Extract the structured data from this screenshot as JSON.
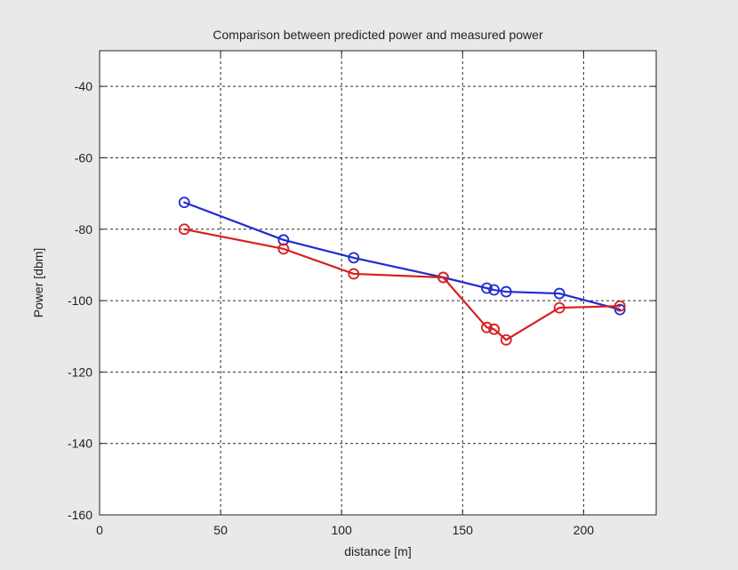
{
  "chart_data": {
    "type": "line",
    "title": "Comparison between predicted power and measured power",
    "xlabel": "distance [m]",
    "ylabel": "Power [dbm]",
    "xlim": [
      0,
      230
    ],
    "ylim": [
      -160,
      -30
    ],
    "xticks": [
      0,
      50,
      100,
      150,
      200
    ],
    "yticks": [
      -160,
      -140,
      -120,
      -100,
      -80,
      -60,
      -40
    ],
    "grid": true,
    "series": [
      {
        "color": "#1f2bd0",
        "marker": "circle",
        "x": [
          35,
          76,
          105,
          142,
          160,
          163,
          168,
          190,
          215
        ],
        "y": [
          -72.5,
          -83,
          -88,
          -93.5,
          -96.5,
          -97,
          -97.5,
          -98,
          -102.5
        ]
      },
      {
        "color": "#d91f1f",
        "marker": "circle",
        "x": [
          35,
          76,
          105,
          142,
          160,
          163,
          168,
          190,
          215
        ],
        "y": [
          -80,
          -85.5,
          -92.5,
          -93.5,
          -107.5,
          -108,
          -111,
          -102,
          -101.5
        ]
      }
    ]
  }
}
